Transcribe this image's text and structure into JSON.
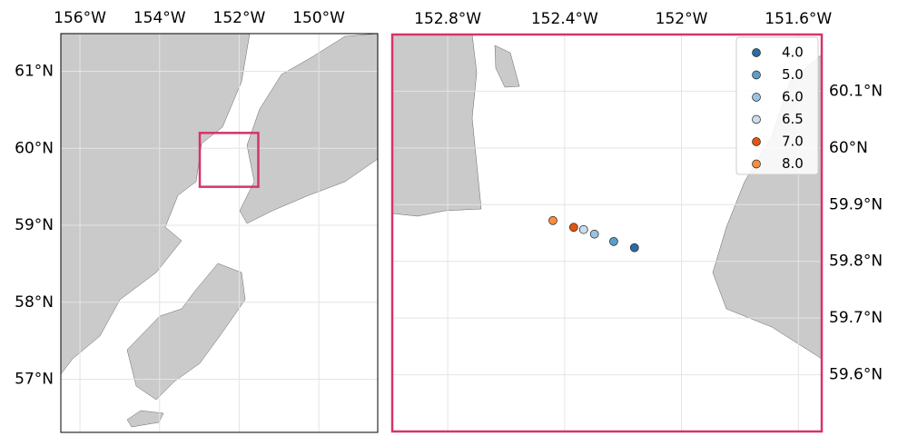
{
  "chart_data": [
    {
      "type": "map",
      "grid": true,
      "xlim": [
        -156.48,
        -148.52
      ],
      "ylim": [
        56.31,
        61.49
      ],
      "xticks": [
        {
          "value": -156,
          "label": "156°W"
        },
        {
          "value": -154,
          "label": "154°W"
        },
        {
          "value": -152,
          "label": "152°W"
        },
        {
          "value": -150,
          "label": "150°W"
        }
      ],
      "yticks": [
        {
          "value": 57,
          "label": "57°N"
        },
        {
          "value": 58,
          "label": "58°N"
        },
        {
          "value": 59,
          "label": "59°N"
        },
        {
          "value": 60,
          "label": "60°N"
        },
        {
          "value": 61,
          "label": "61°N"
        }
      ]
    },
    {
      "type": "scatter",
      "grid": true,
      "legend": "upper right",
      "xlim": [
        -152.99,
        -151.52
      ],
      "ylim": [
        59.5,
        60.2
      ],
      "xticks": [
        {
          "value": -152.8,
          "label": "152.8°W"
        },
        {
          "value": -152.4,
          "label": "152.4°W"
        },
        {
          "value": -152,
          "label": "152°W"
        },
        {
          "value": -151.6,
          "label": "151.6°W"
        }
      ],
      "yticks": [
        {
          "value": 59.6,
          "label": "59.6°N"
        },
        {
          "value": 59.7,
          "label": "59.7°N"
        },
        {
          "value": 59.8,
          "label": "59.8°N"
        },
        {
          "value": 59.9,
          "label": "59.9°N"
        },
        {
          "value": 60,
          "label": "60°N"
        },
        {
          "value": 60.1,
          "label": "60.1°N"
        }
      ],
      "series": [
        {
          "name": "4.0",
          "color": "#2c6ca6",
          "x": [
            -152.161
          ],
          "values": [
            59.824
          ]
        },
        {
          "name": "5.0",
          "color": "#5b9ec9",
          "x": [
            -152.232
          ],
          "values": [
            59.835
          ]
        },
        {
          "name": "6.0",
          "color": "#9ac3df",
          "x": [
            -152.298
          ],
          "values": [
            59.848
          ]
        },
        {
          "name": "6.5",
          "color": "#c9ddef",
          "x": [
            -152.335
          ],
          "values": [
            59.856
          ]
        },
        {
          "name": "7.0",
          "color": "#e6550d",
          "x": [
            -152.369
          ],
          "values": [
            59.86
          ]
        },
        {
          "name": "8.0",
          "color": "#fd8d3c",
          "x": [
            -152.44
          ],
          "values": [
            59.872
          ]
        }
      ]
    }
  ]
}
